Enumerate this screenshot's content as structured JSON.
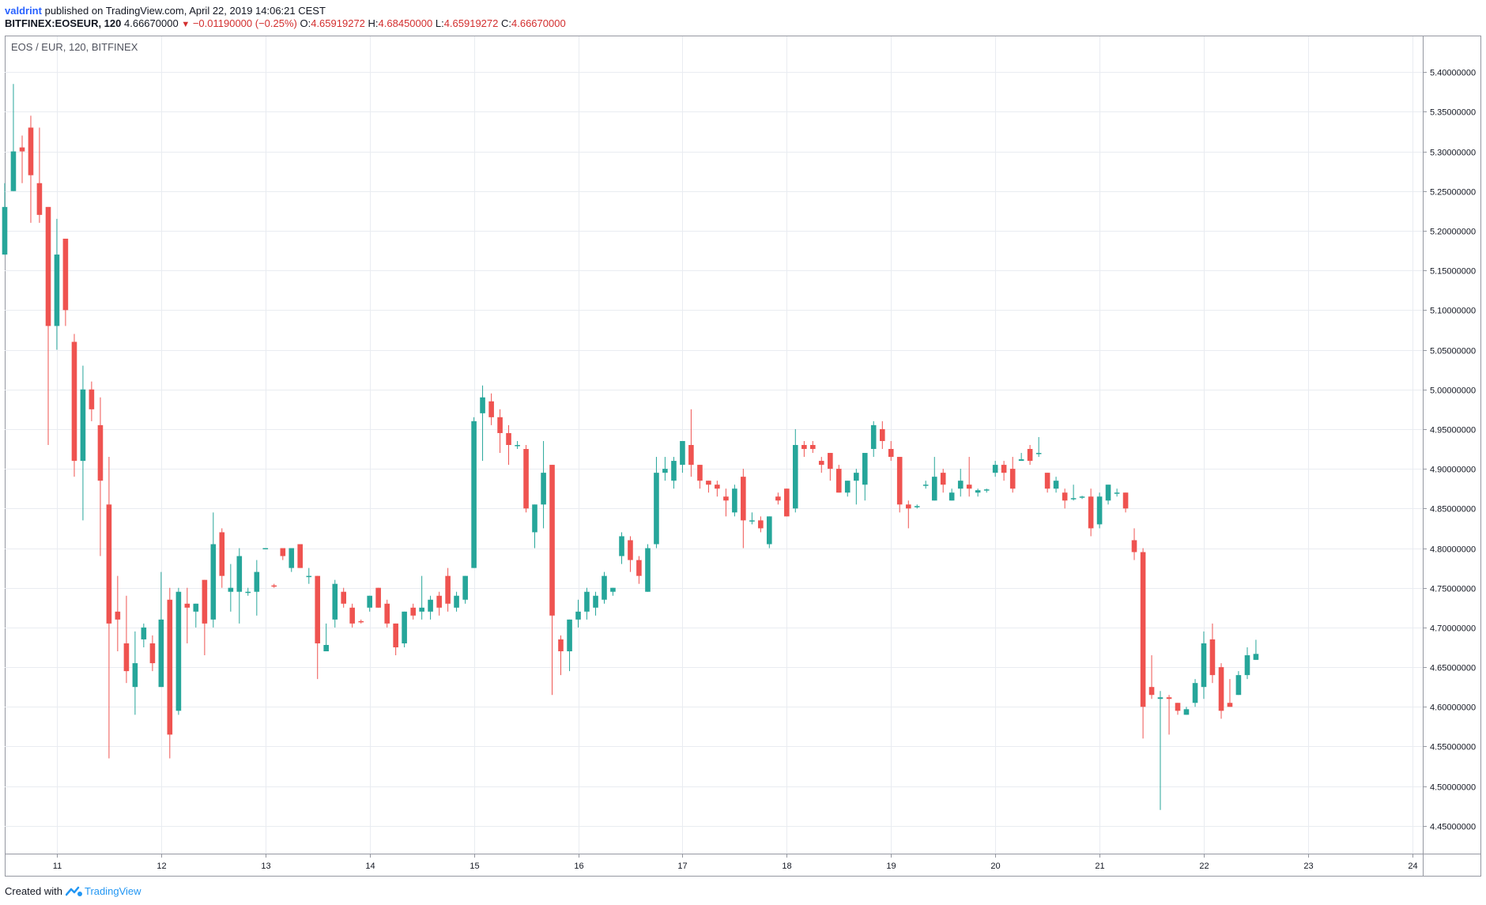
{
  "header": {
    "author": "valdrint",
    "published": "published on TradingView.com, April 22, 2019 14:06:21 CEST"
  },
  "symbol_line": {
    "symbol": "BITFINEX:EOSEUR, 120",
    "price": "4.66670000",
    "change": "−0.01190000 (−0.25%)",
    "o_label": "O:",
    "o": "4.65919272",
    "h_label": "H:",
    "h": "4.68450000",
    "l_label": "L:",
    "l": "4.65919272",
    "c_label": "C:",
    "c": "4.66670000"
  },
  "footer": {
    "created_with": "Created with",
    "brand": "TradingView"
  },
  "colors": {
    "up": "#26a69a",
    "down": "#ef5350",
    "grid": "#e9ecf1",
    "axis": "#9598a1"
  },
  "chart_data": {
    "type": "candlestick",
    "title": "EOS / EUR, 120, BITFINEX",
    "xlim": [
      10.5,
      24.1
    ],
    "ylim": [
      4.415,
      5.445
    ],
    "x_ticks": [
      {
        "x": 11,
        "label": "11"
      },
      {
        "x": 12,
        "label": "12"
      },
      {
        "x": 13,
        "label": "13"
      },
      {
        "x": 14,
        "label": "14"
      },
      {
        "x": 15,
        "label": "15"
      },
      {
        "x": 16,
        "label": "16"
      },
      {
        "x": 17,
        "label": "17"
      },
      {
        "x": 18,
        "label": "18"
      },
      {
        "x": 19,
        "label": "19"
      },
      {
        "x": 20,
        "label": "20"
      },
      {
        "x": 21,
        "label": "21"
      },
      {
        "x": 22,
        "label": "22"
      },
      {
        "x": 23,
        "label": "23"
      },
      {
        "x": 24,
        "label": "24"
      }
    ],
    "y_ticks": [
      {
        "v": 4.45,
        "label": "4.45000000"
      },
      {
        "v": 4.5,
        "label": "4.50000000"
      },
      {
        "v": 4.55,
        "label": "4.55000000"
      },
      {
        "v": 4.6,
        "label": "4.60000000"
      },
      {
        "v": 4.65,
        "label": "4.65000000"
      },
      {
        "v": 4.7,
        "label": "4.70000000"
      },
      {
        "v": 4.75,
        "label": "4.75000000"
      },
      {
        "v": 4.8,
        "label": "4.80000000"
      },
      {
        "v": 4.85,
        "label": "4.85000000"
      },
      {
        "v": 4.9,
        "label": "4.90000000"
      },
      {
        "v": 4.95,
        "label": "4.95000000"
      },
      {
        "v": 5.0,
        "label": "5.00000000"
      },
      {
        "v": 5.05,
        "label": "5.05000000"
      },
      {
        "v": 5.1,
        "label": "5.10000000"
      },
      {
        "v": 5.15,
        "label": "5.15000000"
      },
      {
        "v": 5.2,
        "label": "5.20000000"
      },
      {
        "v": 5.25,
        "label": "5.25000000"
      },
      {
        "v": 5.3,
        "label": "5.30000000"
      },
      {
        "v": 5.35,
        "label": "5.35000000"
      },
      {
        "v": 5.4,
        "label": "5.40000000"
      }
    ],
    "candles": [
      {
        "x": 10.5,
        "o": 5.17,
        "h": 5.26,
        "l": 5.17,
        "c": 5.23
      },
      {
        "x": 10.583,
        "o": 5.25,
        "h": 5.385,
        "l": 5.25,
        "c": 5.3
      },
      {
        "x": 10.667,
        "o": 5.305,
        "h": 5.32,
        "l": 5.26,
        "c": 5.3
      },
      {
        "x": 10.75,
        "o": 5.33,
        "h": 5.345,
        "l": 5.21,
        "c": 5.27
      },
      {
        "x": 10.833,
        "o": 5.26,
        "h": 5.33,
        "l": 5.21,
        "c": 5.22
      },
      {
        "x": 10.917,
        "o": 5.23,
        "h": 5.23,
        "l": 4.93,
        "c": 5.08
      },
      {
        "x": 11.0,
        "o": 5.08,
        "h": 5.215,
        "l": 5.05,
        "c": 5.17
      },
      {
        "x": 11.083,
        "o": 5.19,
        "h": 5.19,
        "l": 5.08,
        "c": 5.1
      },
      {
        "x": 11.167,
        "o": 5.06,
        "h": 5.07,
        "l": 4.89,
        "c": 4.91
      },
      {
        "x": 11.25,
        "o": 4.91,
        "h": 5.03,
        "l": 4.835,
        "c": 5.0
      },
      {
        "x": 11.333,
        "o": 5.0,
        "h": 5.01,
        "l": 4.96,
        "c": 4.975
      },
      {
        "x": 11.417,
        "o": 4.955,
        "h": 4.99,
        "l": 4.79,
        "c": 4.885
      },
      {
        "x": 11.5,
        "o": 4.855,
        "h": 4.915,
        "l": 4.535,
        "c": 4.705
      },
      {
        "x": 11.583,
        "o": 4.72,
        "h": 4.765,
        "l": 4.67,
        "c": 4.71
      },
      {
        "x": 11.667,
        "o": 4.68,
        "h": 4.74,
        "l": 4.63,
        "c": 4.645
      },
      {
        "x": 11.75,
        "o": 4.625,
        "h": 4.695,
        "l": 4.59,
        "c": 4.655
      },
      {
        "x": 11.833,
        "o": 4.685,
        "h": 4.705,
        "l": 4.675,
        "c": 4.7
      },
      {
        "x": 11.917,
        "o": 4.68,
        "h": 4.69,
        "l": 4.645,
        "c": 4.655
      },
      {
        "x": 12.0,
        "o": 4.625,
        "h": 4.77,
        "l": 4.625,
        "c": 4.71
      },
      {
        "x": 12.083,
        "o": 4.735,
        "h": 4.75,
        "l": 4.535,
        "c": 4.565
      },
      {
        "x": 12.167,
        "o": 4.595,
        "h": 4.75,
        "l": 4.59,
        "c": 4.745
      },
      {
        "x": 12.25,
        "o": 4.73,
        "h": 4.75,
        "l": 4.68,
        "c": 4.725
      },
      {
        "x": 12.333,
        "o": 4.72,
        "h": 4.73,
        "l": 4.7,
        "c": 4.73
      },
      {
        "x": 12.417,
        "o": 4.76,
        "h": 4.76,
        "l": 4.665,
        "c": 4.705
      },
      {
        "x": 12.5,
        "o": 4.71,
        "h": 4.845,
        "l": 4.7,
        "c": 4.805
      },
      {
        "x": 12.583,
        "o": 4.82,
        "h": 4.825,
        "l": 4.75,
        "c": 4.765
      },
      {
        "x": 12.667,
        "o": 4.745,
        "h": 4.78,
        "l": 4.72,
        "c": 4.75
      },
      {
        "x": 12.75,
        "o": 4.745,
        "h": 4.8,
        "l": 4.705,
        "c": 4.79
      },
      {
        "x": 12.833,
        "o": 4.745,
        "h": 4.75,
        "l": 4.74,
        "c": 4.745
      },
      {
        "x": 12.917,
        "o": 4.745,
        "h": 4.785,
        "l": 4.715,
        "c": 4.77
      },
      {
        "x": 13.0,
        "o": 4.8,
        "h": 4.8,
        "l": 4.8,
        "c": 4.8
      },
      {
        "x": 13.083,
        "o": 4.753,
        "h": 4.755,
        "l": 4.75,
        "c": 4.752
      },
      {
        "x": 13.167,
        "o": 4.8,
        "h": 4.8,
        "l": 4.785,
        "c": 4.79
      },
      {
        "x": 13.25,
        "o": 4.775,
        "h": 4.8,
        "l": 4.77,
        "c": 4.8
      },
      {
        "x": 13.333,
        "o": 4.805,
        "h": 4.805,
        "l": 4.775,
        "c": 4.775
      },
      {
        "x": 13.417,
        "o": 4.765,
        "h": 4.775,
        "l": 4.755,
        "c": 4.765
      },
      {
        "x": 13.5,
        "o": 4.765,
        "h": 4.765,
        "l": 4.635,
        "c": 4.68
      },
      {
        "x": 13.583,
        "o": 4.67,
        "h": 4.705,
        "l": 4.67,
        "c": 4.678
      },
      {
        "x": 13.667,
        "o": 4.71,
        "h": 4.76,
        "l": 4.7,
        "c": 4.755
      },
      {
        "x": 13.75,
        "o": 4.745,
        "h": 4.75,
        "l": 4.725,
        "c": 4.73
      },
      {
        "x": 13.833,
        "o": 4.725,
        "h": 4.73,
        "l": 4.7,
        "c": 4.705
      },
      {
        "x": 13.917,
        "o": 4.708,
        "h": 4.71,
        "l": 4.705,
        "c": 4.707
      },
      {
        "x": 14.0,
        "o": 4.725,
        "h": 4.74,
        "l": 4.72,
        "c": 4.74
      },
      {
        "x": 14.083,
        "o": 4.75,
        "h": 4.75,
        "l": 4.725,
        "c": 4.725
      },
      {
        "x": 14.167,
        "o": 4.73,
        "h": 4.735,
        "l": 4.7,
        "c": 4.705
      },
      {
        "x": 14.25,
        "o": 4.705,
        "h": 4.705,
        "l": 4.665,
        "c": 4.675
      },
      {
        "x": 14.333,
        "o": 4.68,
        "h": 4.72,
        "l": 4.675,
        "c": 4.72
      },
      {
        "x": 14.417,
        "o": 4.725,
        "h": 4.73,
        "l": 4.71,
        "c": 4.715
      },
      {
        "x": 14.5,
        "o": 4.72,
        "h": 4.765,
        "l": 4.71,
        "c": 4.725
      },
      {
        "x": 14.583,
        "o": 4.72,
        "h": 4.74,
        "l": 4.71,
        "c": 4.735
      },
      {
        "x": 14.667,
        "o": 4.74,
        "h": 4.745,
        "l": 4.715,
        "c": 4.725
      },
      {
        "x": 14.75,
        "o": 4.765,
        "h": 4.775,
        "l": 4.72,
        "c": 4.73
      },
      {
        "x": 14.833,
        "o": 4.725,
        "h": 4.745,
        "l": 4.72,
        "c": 4.74
      },
      {
        "x": 14.917,
        "o": 4.735,
        "h": 4.765,
        "l": 4.73,
        "c": 4.765
      },
      {
        "x": 15.0,
        "o": 4.775,
        "h": 4.965,
        "l": 4.775,
        "c": 4.96
      },
      {
        "x": 15.083,
        "o": 4.97,
        "h": 5.005,
        "l": 4.91,
        "c": 4.99
      },
      {
        "x": 15.167,
        "o": 4.985,
        "h": 4.995,
        "l": 4.955,
        "c": 4.965
      },
      {
        "x": 15.25,
        "o": 4.965,
        "h": 4.975,
        "l": 4.92,
        "c": 4.945
      },
      {
        "x": 15.333,
        "o": 4.945,
        "h": 4.955,
        "l": 4.905,
        "c": 4.93
      },
      {
        "x": 15.417,
        "o": 4.93,
        "h": 4.935,
        "l": 4.925,
        "c": 4.93
      },
      {
        "x": 15.5,
        "o": 4.925,
        "h": 4.93,
        "l": 4.845,
        "c": 4.85
      },
      {
        "x": 15.583,
        "o": 4.82,
        "h": 4.855,
        "l": 4.8,
        "c": 4.855
      },
      {
        "x": 15.667,
        "o": 4.855,
        "h": 4.935,
        "l": 4.825,
        "c": 4.895
      },
      {
        "x": 15.75,
        "o": 4.905,
        "h": 4.905,
        "l": 4.615,
        "c": 4.715
      },
      {
        "x": 15.833,
        "o": 4.685,
        "h": 4.69,
        "l": 4.64,
        "c": 4.67
      },
      {
        "x": 15.917,
        "o": 4.67,
        "h": 4.71,
        "l": 4.645,
        "c": 4.71
      },
      {
        "x": 16.0,
        "o": 4.71,
        "h": 4.735,
        "l": 4.7,
        "c": 4.72
      },
      {
        "x": 16.083,
        "o": 4.72,
        "h": 4.75,
        "l": 4.71,
        "c": 4.745
      },
      {
        "x": 16.167,
        "o": 4.725,
        "h": 4.745,
        "l": 4.715,
        "c": 4.74
      },
      {
        "x": 16.25,
        "o": 4.735,
        "h": 4.77,
        "l": 4.73,
        "c": 4.765
      },
      {
        "x": 16.333,
        "o": 4.745,
        "h": 4.75,
        "l": 4.74,
        "c": 4.75
      },
      {
        "x": 16.417,
        "o": 4.79,
        "h": 4.82,
        "l": 4.78,
        "c": 4.815
      },
      {
        "x": 16.5,
        "o": 4.81,
        "h": 4.815,
        "l": 4.77,
        "c": 4.785
      },
      {
        "x": 16.583,
        "o": 4.785,
        "h": 4.79,
        "l": 4.755,
        "c": 4.765
      },
      {
        "x": 16.667,
        "o": 4.745,
        "h": 4.805,
        "l": 4.745,
        "c": 4.8
      },
      {
        "x": 16.75,
        "o": 4.805,
        "h": 4.915,
        "l": 4.8,
        "c": 4.895
      },
      {
        "x": 16.833,
        "o": 4.895,
        "h": 4.915,
        "l": 4.885,
        "c": 4.9
      },
      {
        "x": 16.917,
        "o": 4.885,
        "h": 4.915,
        "l": 4.875,
        "c": 4.91
      },
      {
        "x": 17.0,
        "o": 4.905,
        "h": 4.935,
        "l": 4.895,
        "c": 4.935
      },
      {
        "x": 17.083,
        "o": 4.93,
        "h": 4.975,
        "l": 4.89,
        "c": 4.905
      },
      {
        "x": 17.167,
        "o": 4.905,
        "h": 4.905,
        "l": 4.875,
        "c": 4.885
      },
      {
        "x": 17.25,
        "o": 4.885,
        "h": 4.885,
        "l": 4.87,
        "c": 4.88
      },
      {
        "x": 17.333,
        "o": 4.88,
        "h": 4.885,
        "l": 4.865,
        "c": 4.875
      },
      {
        "x": 17.417,
        "o": 4.865,
        "h": 4.875,
        "l": 4.84,
        "c": 4.86
      },
      {
        "x": 17.5,
        "o": 4.845,
        "h": 4.88,
        "l": 4.84,
        "c": 4.875
      },
      {
        "x": 17.583,
        "o": 4.89,
        "h": 4.9,
        "l": 4.8,
        "c": 4.835
      },
      {
        "x": 17.667,
        "o": 4.835,
        "h": 4.845,
        "l": 4.83,
        "c": 4.835
      },
      {
        "x": 17.75,
        "o": 4.835,
        "h": 4.84,
        "l": 4.82,
        "c": 4.825
      },
      {
        "x": 17.833,
        "o": 4.805,
        "h": 4.84,
        "l": 4.8,
        "c": 4.84
      },
      {
        "x": 17.917,
        "o": 4.865,
        "h": 4.87,
        "l": 4.855,
        "c": 4.86
      },
      {
        "x": 18.0,
        "o": 4.875,
        "h": 4.875,
        "l": 4.84,
        "c": 4.84
      },
      {
        "x": 18.083,
        "o": 4.85,
        "h": 4.95,
        "l": 4.845,
        "c": 4.93
      },
      {
        "x": 18.167,
        "o": 4.93,
        "h": 4.935,
        "l": 4.915,
        "c": 4.925
      },
      {
        "x": 18.25,
        "o": 4.93,
        "h": 4.935,
        "l": 4.92,
        "c": 4.925
      },
      {
        "x": 18.333,
        "o": 4.91,
        "h": 4.915,
        "l": 4.895,
        "c": 4.905
      },
      {
        "x": 18.417,
        "o": 4.92,
        "h": 4.92,
        "l": 4.885,
        "c": 4.9
      },
      {
        "x": 18.5,
        "o": 4.9,
        "h": 4.905,
        "l": 4.87,
        "c": 4.87
      },
      {
        "x": 18.583,
        "o": 4.87,
        "h": 4.885,
        "l": 4.865,
        "c": 4.885
      },
      {
        "x": 18.667,
        "o": 4.885,
        "h": 4.9,
        "l": 4.855,
        "c": 4.895
      },
      {
        "x": 18.75,
        "o": 4.88,
        "h": 4.92,
        "l": 4.86,
        "c": 4.92
      },
      {
        "x": 18.833,
        "o": 4.925,
        "h": 4.96,
        "l": 4.915,
        "c": 4.955
      },
      {
        "x": 18.917,
        "o": 4.95,
        "h": 4.96,
        "l": 4.925,
        "c": 4.935
      },
      {
        "x": 19.0,
        "o": 4.925,
        "h": 4.935,
        "l": 4.91,
        "c": 4.915
      },
      {
        "x": 19.083,
        "o": 4.915,
        "h": 4.915,
        "l": 4.845,
        "c": 4.855
      },
      {
        "x": 19.167,
        "o": 4.855,
        "h": 4.86,
        "l": 4.825,
        "c": 4.85
      },
      {
        "x": 19.25,
        "o": 4.852,
        "h": 4.855,
        "l": 4.85,
        "c": 4.853
      },
      {
        "x": 19.333,
        "o": 4.88,
        "h": 4.885,
        "l": 4.875,
        "c": 4.88
      },
      {
        "x": 19.417,
        "o": 4.86,
        "h": 4.915,
        "l": 4.86,
        "c": 4.89
      },
      {
        "x": 19.5,
        "o": 4.895,
        "h": 4.9,
        "l": 4.87,
        "c": 4.88
      },
      {
        "x": 19.583,
        "o": 4.86,
        "h": 4.875,
        "l": 4.86,
        "c": 4.87
      },
      {
        "x": 19.667,
        "o": 4.875,
        "h": 4.9,
        "l": 4.865,
        "c": 4.885
      },
      {
        "x": 19.75,
        "o": 4.88,
        "h": 4.915,
        "l": 4.865,
        "c": 4.875
      },
      {
        "x": 19.833,
        "o": 4.87,
        "h": 4.875,
        "l": 4.865,
        "c": 4.873
      },
      {
        "x": 19.917,
        "o": 4.873,
        "h": 4.875,
        "l": 4.87,
        "c": 4.874
      },
      {
        "x": 20.0,
        "o": 4.895,
        "h": 4.91,
        "l": 4.89,
        "c": 4.905
      },
      {
        "x": 20.083,
        "o": 4.905,
        "h": 4.91,
        "l": 4.885,
        "c": 4.895
      },
      {
        "x": 20.167,
        "o": 4.9,
        "h": 4.915,
        "l": 4.87,
        "c": 4.875
      },
      {
        "x": 20.25,
        "o": 4.91,
        "h": 4.92,
        "l": 4.91,
        "c": 4.912
      },
      {
        "x": 20.333,
        "o": 4.925,
        "h": 4.93,
        "l": 4.905,
        "c": 4.91
      },
      {
        "x": 20.417,
        "o": 4.92,
        "h": 4.94,
        "l": 4.915,
        "c": 4.92
      },
      {
        "x": 20.5,
        "o": 4.895,
        "h": 4.895,
        "l": 4.87,
        "c": 4.875
      },
      {
        "x": 20.583,
        "o": 4.875,
        "h": 4.89,
        "l": 4.87,
        "c": 4.885
      },
      {
        "x": 20.667,
        "o": 4.87,
        "h": 4.875,
        "l": 4.85,
        "c": 4.86
      },
      {
        "x": 20.75,
        "o": 4.862,
        "h": 4.88,
        "l": 4.86,
        "c": 4.863
      },
      {
        "x": 20.833,
        "o": 4.864,
        "h": 4.866,
        "l": 4.862,
        "c": 4.865
      },
      {
        "x": 20.917,
        "o": 4.865,
        "h": 4.875,
        "l": 4.815,
        "c": 4.825
      },
      {
        "x": 21.0,
        "o": 4.83,
        "h": 4.87,
        "l": 4.825,
        "c": 4.865
      },
      {
        "x": 21.083,
        "o": 4.86,
        "h": 4.88,
        "l": 4.855,
        "c": 4.88
      },
      {
        "x": 21.167,
        "o": 4.87,
        "h": 4.875,
        "l": 4.865,
        "c": 4.87
      },
      {
        "x": 21.25,
        "o": 4.87,
        "h": 4.87,
        "l": 4.845,
        "c": 4.85
      },
      {
        "x": 21.333,
        "o": 4.81,
        "h": 4.825,
        "l": 4.785,
        "c": 4.795
      },
      {
        "x": 21.417,
        "o": 4.795,
        "h": 4.8,
        "l": 4.56,
        "c": 4.6
      },
      {
        "x": 21.5,
        "o": 4.625,
        "h": 4.665,
        "l": 4.61,
        "c": 4.615
      },
      {
        "x": 21.583,
        "o": 4.61,
        "h": 4.62,
        "l": 4.47,
        "c": 4.612
      },
      {
        "x": 21.667,
        "o": 4.612,
        "h": 4.615,
        "l": 4.565,
        "c": 4.61
      },
      {
        "x": 21.75,
        "o": 4.605,
        "h": 4.605,
        "l": 4.59,
        "c": 4.595
      },
      {
        "x": 21.833,
        "o": 4.59,
        "h": 4.6,
        "l": 4.59,
        "c": 4.597
      },
      {
        "x": 21.917,
        "o": 4.605,
        "h": 4.635,
        "l": 4.6,
        "c": 4.63
      },
      {
        "x": 22.0,
        "o": 4.625,
        "h": 4.695,
        "l": 4.61,
        "c": 4.68
      },
      {
        "x": 22.083,
        "o": 4.685,
        "h": 4.705,
        "l": 4.63,
        "c": 4.64
      },
      {
        "x": 22.167,
        "o": 4.65,
        "h": 4.655,
        "l": 4.585,
        "c": 4.595
      },
      {
        "x": 22.25,
        "o": 4.605,
        "h": 4.635,
        "l": 4.6,
        "c": 4.6
      },
      {
        "x": 22.333,
        "o": 4.615,
        "h": 4.645,
        "l": 4.615,
        "c": 4.64
      },
      {
        "x": 22.417,
        "o": 4.64,
        "h": 4.675,
        "l": 4.635,
        "c": 4.665
      },
      {
        "x": 22.5,
        "o": 4.6592,
        "h": 4.6845,
        "l": 4.6592,
        "c": 4.6667
      }
    ]
  }
}
